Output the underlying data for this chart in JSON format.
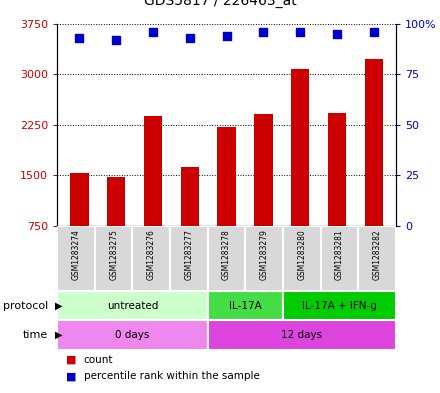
{
  "title": "GDS5817 / 226463_at",
  "samples": [
    "GSM1283274",
    "GSM1283275",
    "GSM1283276",
    "GSM1283277",
    "GSM1283278",
    "GSM1283279",
    "GSM1283280",
    "GSM1283281",
    "GSM1283282"
  ],
  "bar_values": [
    1530,
    1470,
    2380,
    1620,
    2210,
    2410,
    3080,
    2430,
    3230
  ],
  "dot_values": [
    93,
    92,
    96,
    93,
    94,
    96,
    96,
    95,
    96
  ],
  "bar_color": "#cc0000",
  "dot_color": "#0000cc",
  "ylim_left": [
    750,
    3750
  ],
  "ylim_right": [
    0,
    100
  ],
  "yticks_left": [
    750,
    1500,
    2250,
    3000,
    3750
  ],
  "ytick_labels_left": [
    "750",
    "1500",
    "2250",
    "3000",
    "3750"
  ],
  "yticks_right": [
    0,
    25,
    50,
    75,
    100
  ],
  "ytick_labels_right": [
    "0",
    "25",
    "50",
    "75",
    "100%"
  ],
  "protocol_groups": [
    {
      "label": "untreated",
      "start": 0,
      "end": 4,
      "color": "#ccffcc"
    },
    {
      "label": "IL-17A",
      "start": 4,
      "end": 6,
      "color": "#44dd44"
    },
    {
      "label": "IL-17A + IFN-g",
      "start": 6,
      "end": 9,
      "color": "#00cc00"
    }
  ],
  "time_groups": [
    {
      "label": "0 days",
      "start": 0,
      "end": 4,
      "color": "#ee88ee"
    },
    {
      "label": "12 days",
      "start": 4,
      "end": 9,
      "color": "#dd44dd"
    }
  ],
  "legend_count_label": "count",
  "legend_pct_label": "percentile rank within the sample",
  "protocol_label": "protocol",
  "time_label": "time",
  "bg_color": "#ffffff"
}
